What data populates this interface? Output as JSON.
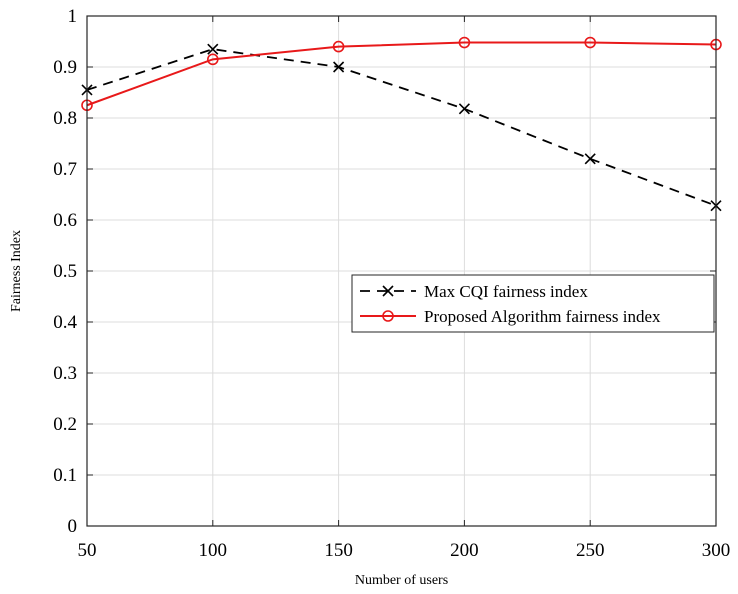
{
  "chart_data": {
    "type": "line",
    "title": "",
    "xlabel": "Number of users",
    "ylabel": "Fairness Index",
    "x": [
      50,
      100,
      150,
      200,
      250,
      300
    ],
    "xlim": [
      50,
      300
    ],
    "ylim": [
      0,
      1
    ],
    "xticks": [
      50,
      100,
      150,
      200,
      250,
      300
    ],
    "yticks": [
      0,
      0.1,
      0.2,
      0.3,
      0.4,
      0.5,
      0.6,
      0.7,
      0.8,
      0.9,
      1
    ],
    "grid": true,
    "legend_position": "center-right",
    "series": [
      {
        "name": "Max CQI fairness index",
        "values": [
          0.855,
          0.935,
          0.9,
          0.818,
          0.72,
          0.628
        ],
        "color": "#000000",
        "line_style": "dashed",
        "marker": "x"
      },
      {
        "name": "Proposed Algorithm fairness index",
        "values": [
          0.825,
          0.915,
          0.94,
          0.948,
          0.948,
          0.944
        ],
        "color": "#e8191a",
        "line_style": "solid",
        "marker": "circle"
      }
    ]
  }
}
